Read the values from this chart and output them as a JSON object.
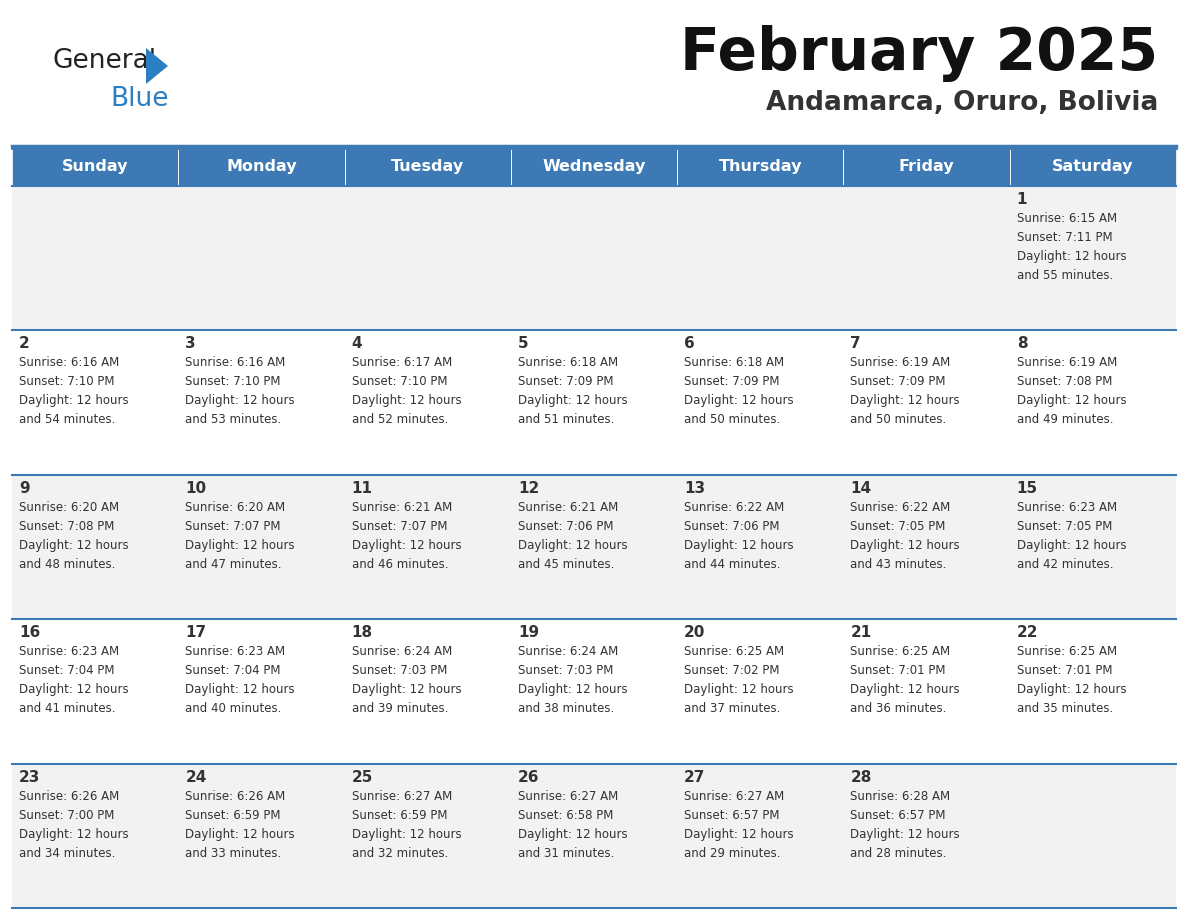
{
  "title": "February 2025",
  "subtitle": "Andamarca, Oruro, Bolivia",
  "header_bg": "#3d7ab5",
  "header_text_color": "#ffffff",
  "cell_bg_odd": "#f2f2f2",
  "cell_bg_even": "#ffffff",
  "text_color": "#333333",
  "separator_color": "#3d7ab5",
  "days_of_week": [
    "Sunday",
    "Monday",
    "Tuesday",
    "Wednesday",
    "Thursday",
    "Friday",
    "Saturday"
  ],
  "weeks": [
    [
      {
        "day": null,
        "info": null
      },
      {
        "day": null,
        "info": null
      },
      {
        "day": null,
        "info": null
      },
      {
        "day": null,
        "info": null
      },
      {
        "day": null,
        "info": null
      },
      {
        "day": null,
        "info": null
      },
      {
        "day": "1",
        "info": "Sunrise: 6:15 AM\nSunset: 7:11 PM\nDaylight: 12 hours\nand 55 minutes."
      }
    ],
    [
      {
        "day": "2",
        "info": "Sunrise: 6:16 AM\nSunset: 7:10 PM\nDaylight: 12 hours\nand 54 minutes."
      },
      {
        "day": "3",
        "info": "Sunrise: 6:16 AM\nSunset: 7:10 PM\nDaylight: 12 hours\nand 53 minutes."
      },
      {
        "day": "4",
        "info": "Sunrise: 6:17 AM\nSunset: 7:10 PM\nDaylight: 12 hours\nand 52 minutes."
      },
      {
        "day": "5",
        "info": "Sunrise: 6:18 AM\nSunset: 7:09 PM\nDaylight: 12 hours\nand 51 minutes."
      },
      {
        "day": "6",
        "info": "Sunrise: 6:18 AM\nSunset: 7:09 PM\nDaylight: 12 hours\nand 50 minutes."
      },
      {
        "day": "7",
        "info": "Sunrise: 6:19 AM\nSunset: 7:09 PM\nDaylight: 12 hours\nand 50 minutes."
      },
      {
        "day": "8",
        "info": "Sunrise: 6:19 AM\nSunset: 7:08 PM\nDaylight: 12 hours\nand 49 minutes."
      }
    ],
    [
      {
        "day": "9",
        "info": "Sunrise: 6:20 AM\nSunset: 7:08 PM\nDaylight: 12 hours\nand 48 minutes."
      },
      {
        "day": "10",
        "info": "Sunrise: 6:20 AM\nSunset: 7:07 PM\nDaylight: 12 hours\nand 47 minutes."
      },
      {
        "day": "11",
        "info": "Sunrise: 6:21 AM\nSunset: 7:07 PM\nDaylight: 12 hours\nand 46 minutes."
      },
      {
        "day": "12",
        "info": "Sunrise: 6:21 AM\nSunset: 7:06 PM\nDaylight: 12 hours\nand 45 minutes."
      },
      {
        "day": "13",
        "info": "Sunrise: 6:22 AM\nSunset: 7:06 PM\nDaylight: 12 hours\nand 44 minutes."
      },
      {
        "day": "14",
        "info": "Sunrise: 6:22 AM\nSunset: 7:05 PM\nDaylight: 12 hours\nand 43 minutes."
      },
      {
        "day": "15",
        "info": "Sunrise: 6:23 AM\nSunset: 7:05 PM\nDaylight: 12 hours\nand 42 minutes."
      }
    ],
    [
      {
        "day": "16",
        "info": "Sunrise: 6:23 AM\nSunset: 7:04 PM\nDaylight: 12 hours\nand 41 minutes."
      },
      {
        "day": "17",
        "info": "Sunrise: 6:23 AM\nSunset: 7:04 PM\nDaylight: 12 hours\nand 40 minutes."
      },
      {
        "day": "18",
        "info": "Sunrise: 6:24 AM\nSunset: 7:03 PM\nDaylight: 12 hours\nand 39 minutes."
      },
      {
        "day": "19",
        "info": "Sunrise: 6:24 AM\nSunset: 7:03 PM\nDaylight: 12 hours\nand 38 minutes."
      },
      {
        "day": "20",
        "info": "Sunrise: 6:25 AM\nSunset: 7:02 PM\nDaylight: 12 hours\nand 37 minutes."
      },
      {
        "day": "21",
        "info": "Sunrise: 6:25 AM\nSunset: 7:01 PM\nDaylight: 12 hours\nand 36 minutes."
      },
      {
        "day": "22",
        "info": "Sunrise: 6:25 AM\nSunset: 7:01 PM\nDaylight: 12 hours\nand 35 minutes."
      }
    ],
    [
      {
        "day": "23",
        "info": "Sunrise: 6:26 AM\nSunset: 7:00 PM\nDaylight: 12 hours\nand 34 minutes."
      },
      {
        "day": "24",
        "info": "Sunrise: 6:26 AM\nSunset: 6:59 PM\nDaylight: 12 hours\nand 33 minutes."
      },
      {
        "day": "25",
        "info": "Sunrise: 6:27 AM\nSunset: 6:59 PM\nDaylight: 12 hours\nand 32 minutes."
      },
      {
        "day": "26",
        "info": "Sunrise: 6:27 AM\nSunset: 6:58 PM\nDaylight: 12 hours\nand 31 minutes."
      },
      {
        "day": "27",
        "info": "Sunrise: 6:27 AM\nSunset: 6:57 PM\nDaylight: 12 hours\nand 29 minutes."
      },
      {
        "day": "28",
        "info": "Sunrise: 6:28 AM\nSunset: 6:57 PM\nDaylight: 12 hours\nand 28 minutes."
      },
      {
        "day": null,
        "info": null
      }
    ]
  ],
  "logo_general_color": "#222222",
  "logo_blue_color": "#2b7ec1",
  "logo_triangle_color": "#2b7ec1",
  "fig_width": 11.88,
  "fig_height": 9.18,
  "dpi": 100
}
